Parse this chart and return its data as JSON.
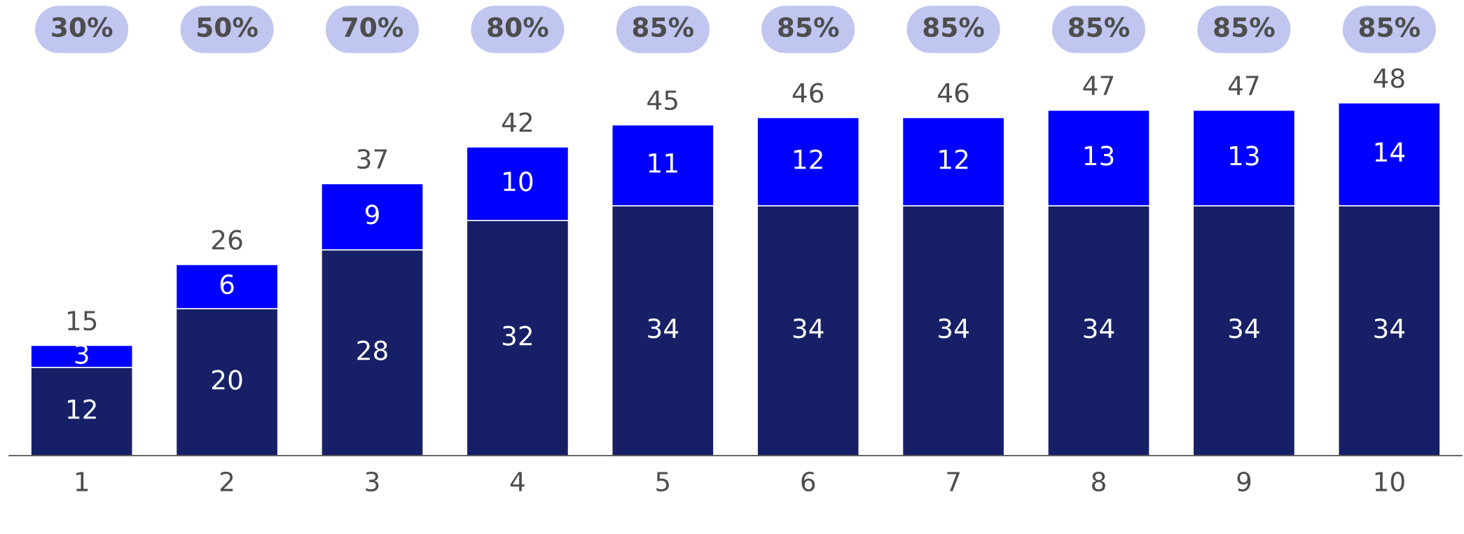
{
  "chart_data": {
    "type": "bar",
    "stacked": true,
    "categories": [
      "1",
      "2",
      "3",
      "4",
      "5",
      "6",
      "7",
      "8",
      "9",
      "10"
    ],
    "series": [
      {
        "color": "#172067",
        "values": [
          12,
          20,
          28,
          32,
          34,
          34,
          34,
          34,
          34,
          34
        ]
      },
      {
        "color": "#0000ff",
        "values": [
          3,
          6,
          9,
          10,
          11,
          12,
          12,
          13,
          13,
          14
        ]
      }
    ],
    "data_labels": true,
    "totals": [
      "15",
      "26",
      "37",
      "42",
      "45",
      "46",
      "46",
      "47",
      "47",
      "48"
    ],
    "annotations": [
      "30%",
      "50%",
      "70%",
      "80%",
      "85%",
      "85%",
      "85%",
      "85%",
      "85%",
      "85%"
    ],
    "tick_labels": "x"
  }
}
